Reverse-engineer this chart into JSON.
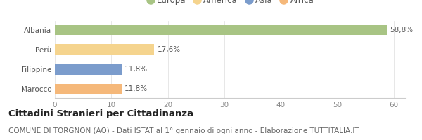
{
  "categories": [
    "Albania",
    "Perù",
    "Filippine",
    "Marocco"
  ],
  "values": [
    58.8,
    17.6,
    11.8,
    11.8
  ],
  "labels": [
    "58,8%",
    "17,6%",
    "11,8%",
    "11,8%"
  ],
  "bar_colors": [
    "#a8c484",
    "#f5d48e",
    "#7b9ccc",
    "#f5b87a"
  ],
  "legend_entries": [
    "Europa",
    "America",
    "Asia",
    "Africa"
  ],
  "legend_colors": [
    "#a8c484",
    "#f5d48e",
    "#7b9ccc",
    "#f5b87a"
  ],
  "xlim": [
    0,
    62
  ],
  "xticks": [
    0,
    10,
    20,
    30,
    40,
    50,
    60
  ],
  "title_bold": "Cittadini Stranieri per Cittadinanza",
  "subtitle": "COMUNE DI TORGNON (AO) - Dati ISTAT al 1° gennaio di ogni anno - Elaborazione TUTTITALIA.IT",
  "background_color": "#ffffff",
  "plot_bg_color": "#ffffff",
  "title_fontsize": 9.5,
  "subtitle_fontsize": 7.5,
  "label_fontsize": 7.5,
  "tick_fontsize": 7.5,
  "legend_fontsize": 8.5
}
